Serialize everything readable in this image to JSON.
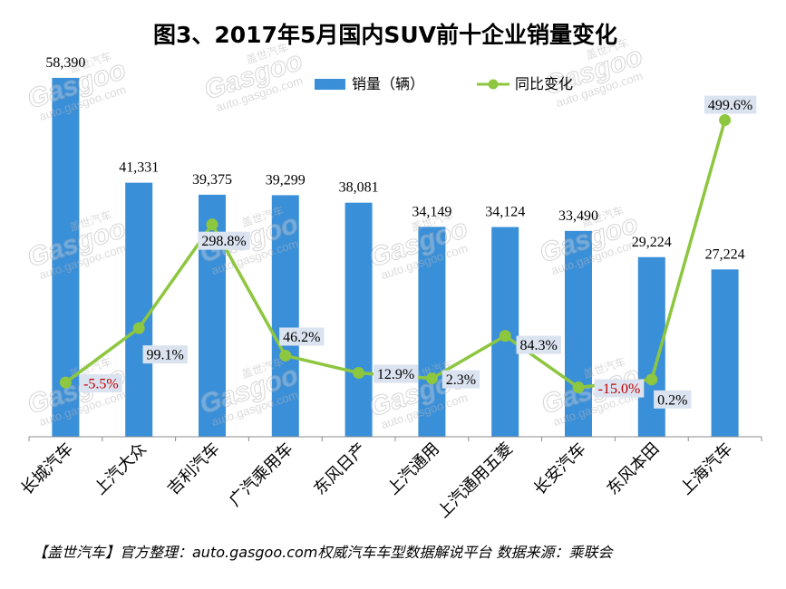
{
  "chart_data": {
    "type": "bar",
    "title": "图3、2017年5月国内SUV前十企业销量变化",
    "xlabel": "",
    "ylabel": "",
    "categories": [
      "长城汽车",
      "上汽大众",
      "吉利汽车",
      "广汽乘用车",
      "东风日产",
      "上汽通用",
      "上汽通用五菱",
      "长安汽车",
      "东风本田",
      "上海汽车"
    ],
    "series": [
      {
        "name": "销量（辆）",
        "type": "bar",
        "color": "#3a8fd9",
        "values": [
          58390,
          41331,
          39375,
          39299,
          38081,
          34149,
          34124,
          33490,
          29224,
          27224
        ],
        "labels": [
          "58,390",
          "41,331",
          "39,375",
          "39,299",
          "38,081",
          "34,149",
          "34,124",
          "33,490",
          "29,224",
          "27,224"
        ]
      },
      {
        "name": "同比变化",
        "type": "line",
        "color": "#8dc63f",
        "values": [
          -5.5,
          99.1,
          298.8,
          46.2,
          12.9,
          2.3,
          84.3,
          -15.0,
          0.2,
          499.6
        ],
        "labels": [
          "-5.5%",
          "99.1%",
          "298.8%",
          "46.2%",
          "12.9%",
          "2.3%",
          "84.3%",
          "-15.0%",
          "0.2%",
          "499.6%"
        ]
      }
    ],
    "ylim": [
      0,
      60000
    ],
    "y2lim": [
      -110,
      600
    ],
    "y_axes_visible": false,
    "grid": false,
    "legend": "top-center",
    "label_box_color": "#dae3ef",
    "label_text_color": "#000000",
    "negative_label_color": "#c00000",
    "axis_color": "#8c8c8c"
  },
  "footer": "【盖世汽车】官方整理：auto.gasgoo.com权威汽车车型数据解说平台 数据来源：乘联会",
  "watermark": {
    "cn": "盖世汽车",
    "logo": "Gasgoo",
    "url": "auto.gasgoo.com"
  }
}
